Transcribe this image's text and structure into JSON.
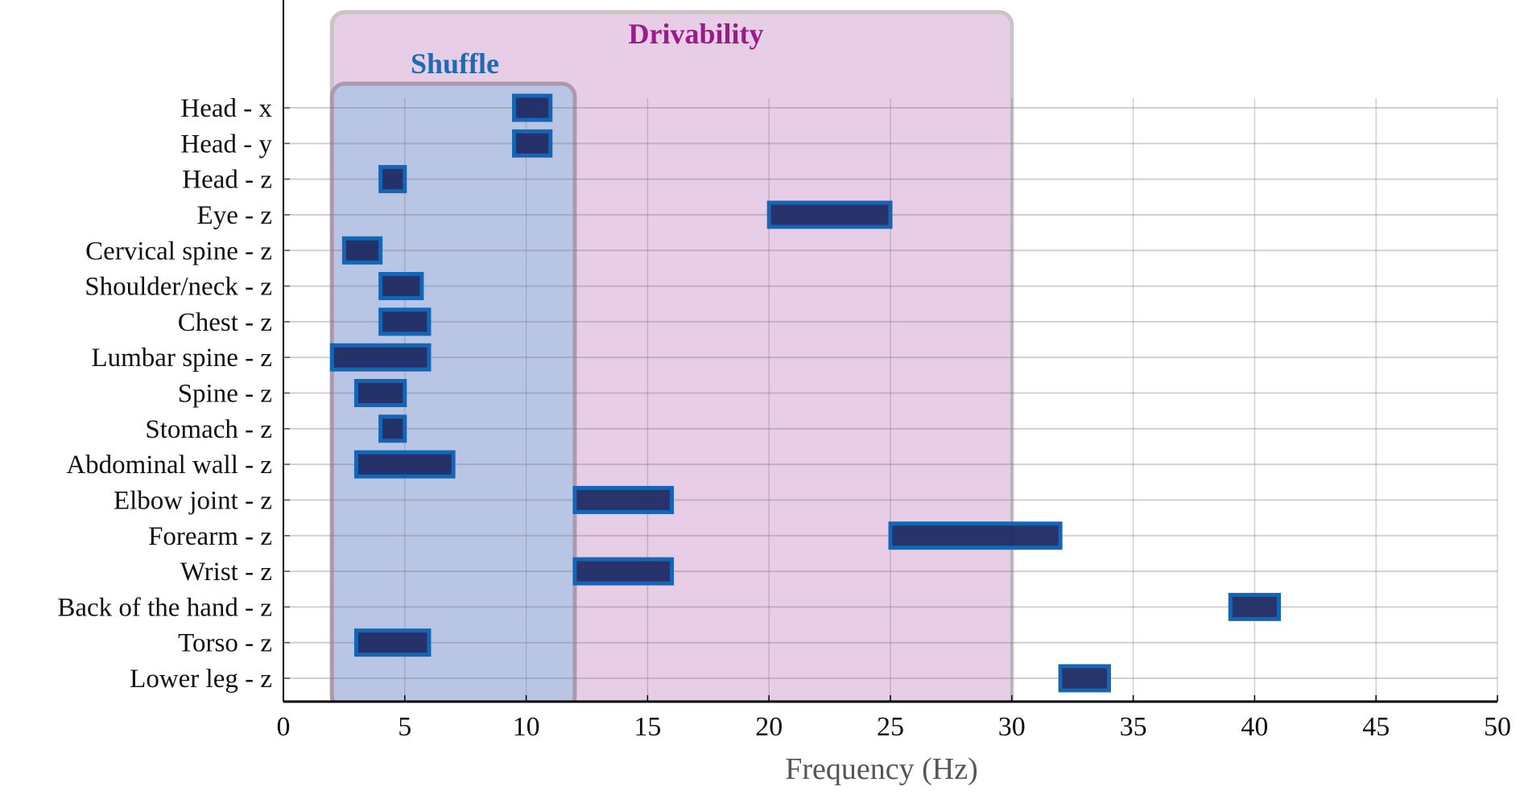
{
  "chart_data": {
    "type": "bar",
    "orientation": "horizontal-range",
    "xlabel": "Frequency (Hz)",
    "ylabel": "",
    "xlim": [
      0,
      50
    ],
    "xticks": [
      0,
      5,
      10,
      15,
      20,
      25,
      30,
      35,
      40,
      45,
      50
    ],
    "grid": true,
    "categories": [
      "Head - x",
      "Head - y",
      "Head - z",
      "Eye - z",
      "Cervical spine - z",
      "Shoulder/neck - z",
      "Chest - z",
      "Lumbar spine - z",
      "Spine - z",
      "Stomach - z",
      "Abdominal wall - z",
      "Elbow joint - z",
      "Forearm - z",
      "Wrist - z",
      "Back of the hand - z",
      "Torso - z",
      "Lower leg - z"
    ],
    "ranges": [
      [
        9.5,
        11
      ],
      [
        9.5,
        11
      ],
      [
        4,
        5
      ],
      [
        20,
        25
      ],
      [
        2.5,
        4
      ],
      [
        4,
        5.7
      ],
      [
        4,
        6
      ],
      [
        2,
        6
      ],
      [
        3,
        5
      ],
      [
        4,
        5
      ],
      [
        3,
        7
      ],
      [
        12,
        16
      ],
      [
        25,
        32
      ],
      [
        12,
        16
      ],
      [
        39,
        41
      ],
      [
        3,
        6
      ],
      [
        32,
        34
      ]
    ],
    "regions": [
      {
        "name": "Drivability",
        "range": [
          2,
          30
        ],
        "color": "#9b1b8a"
      },
      {
        "name": "Shuffle",
        "range": [
          2,
          12
        ],
        "color": "#1a6db5"
      }
    ],
    "colors": {
      "bar_fill": "#1c2a63",
      "bar_edge": "#1565b5",
      "drivability_fill": "#e8cde6",
      "shuffle_fill": "#b9c5e4"
    }
  }
}
